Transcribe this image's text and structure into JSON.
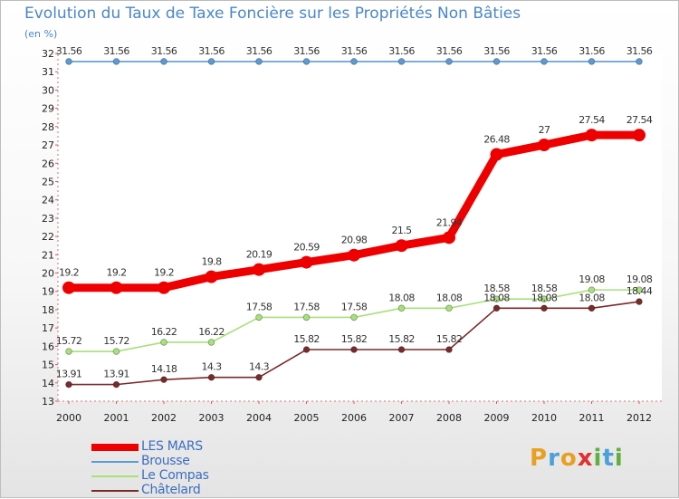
{
  "chart_data": {
    "type": "line",
    "title": "Evolution du Taux de Taxe Foncière sur les Propriétés Non Bâties",
    "ylabel": "(en %)",
    "xlabel": "",
    "categories": [
      "2000",
      "2001",
      "2002",
      "2003",
      "2004",
      "2005",
      "2006",
      "2007",
      "2008",
      "2009",
      "2010",
      "2011",
      "2012"
    ],
    "ylim": [
      13,
      32
    ],
    "yticks": [
      13,
      14,
      15,
      16,
      17,
      18,
      19,
      20,
      21,
      22,
      23,
      24,
      25,
      26,
      27,
      28,
      29,
      30,
      31,
      32
    ],
    "series": [
      {
        "name": "LES MARS",
        "color": "#ee0000",
        "width": "thick",
        "values": [
          19.2,
          19.2,
          19.2,
          19.8,
          20.19,
          20.59,
          20.98,
          21.5,
          21.94,
          26.48,
          27,
          27.54,
          27.54
        ],
        "labels": [
          "19.2",
          "19.2",
          "19.2",
          "19.8",
          "20.19",
          "20.59",
          "20.98",
          "21.5",
          "21.94",
          "26.48",
          "27",
          "27.54",
          "27.54"
        ]
      },
      {
        "name": "Brousse",
        "color": "#5b9bd5",
        "width": "thin",
        "values": [
          31.56,
          31.56,
          31.56,
          31.56,
          31.56,
          31.56,
          31.56,
          31.56,
          31.56,
          31.56,
          31.56,
          31.56,
          31.56
        ],
        "labels": [
          "31.56",
          "31.56",
          "31.56",
          "31.56",
          "31.56",
          "31.56",
          "31.56",
          "31.56",
          "31.56",
          "31.56",
          "31.56",
          "31.56",
          "31.56"
        ]
      },
      {
        "name": "Le Compas",
        "color": "#a8e07a",
        "width": "thin",
        "values": [
          15.72,
          15.72,
          16.22,
          16.22,
          17.58,
          17.58,
          17.58,
          18.08,
          18.08,
          18.58,
          18.58,
          19.08,
          19.08
        ],
        "labels": [
          "15.72",
          "15.72",
          "16.22",
          "16.22",
          "17.58",
          "17.58",
          "17.58",
          "18.08",
          "18.08",
          "18.58",
          "18.58",
          "19.08",
          "19.08"
        ]
      },
      {
        "name": "Châtelard",
        "color": "#7a2a2a",
        "width": "thin",
        "values": [
          13.91,
          13.91,
          14.18,
          14.3,
          14.3,
          15.82,
          15.82,
          15.82,
          15.82,
          18.08,
          18.08,
          18.08,
          18.44
        ],
        "labels": [
          "13.91",
          "13.91",
          "14.18",
          "14.3",
          "14.3",
          "15.82",
          "15.82",
          "15.82",
          "15.82",
          "18.08",
          "18.08",
          "18.08",
          "18.44"
        ]
      }
    ]
  },
  "logo": {
    "letters": [
      "P",
      "r",
      "o",
      "x",
      "i",
      "t",
      "i"
    ],
    "colors": [
      "#e8a020",
      "#4aa0d8",
      "#e8a020",
      "#e03030",
      "#60b040",
      "#4aa0d8",
      "#60b040"
    ]
  }
}
